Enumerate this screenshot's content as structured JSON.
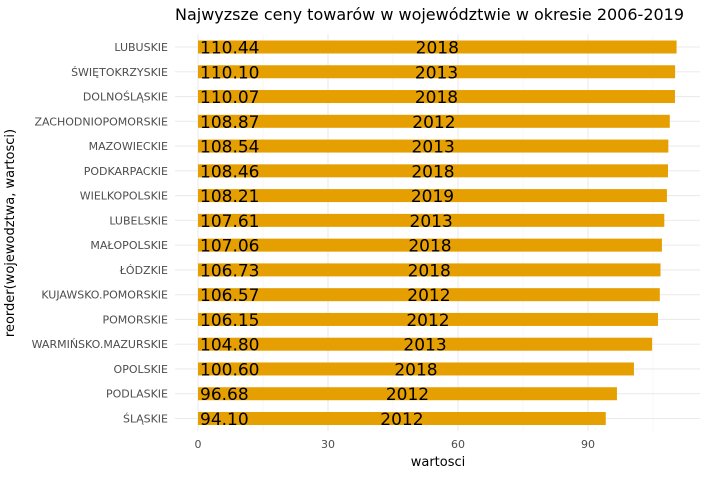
{
  "chart_data": {
    "type": "bar",
    "orientation": "horizontal",
    "title": "Najwyzsze ceny towarów w województwie w okresie 2006-2019",
    "xlabel": "wartosci",
    "ylabel": "reorder(wojewodztwa, wartosci)",
    "xlim": [
      0,
      110.44
    ],
    "x_ticks": [
      0,
      30,
      60,
      90
    ],
    "grid": true,
    "bar_color": "#E69F00",
    "categories": [
      "LUBUSKIE",
      "ŚWIĘTOKRZYSKIE",
      "DOLNOŚLĄSKIE",
      "ZACHODNIOPOMORSKIE",
      "MAZOWIECKIE",
      "PODKARPACKIE",
      "WIELKOPOLSKIE",
      "LUBELSKIE",
      "MAŁOPOLSKIE",
      "ŁÓDZKIE",
      "KUJAWSKO.POMORSKIE",
      "POMORSKIE",
      "WARMIŃSKO.MAZURSKIE",
      "OPOLSKIE",
      "PODLASKIE",
      "ŚLĄSKIE"
    ],
    "values": [
      110.44,
      110.1,
      110.07,
      108.87,
      108.54,
      108.46,
      108.21,
      107.61,
      107.06,
      106.73,
      106.57,
      106.15,
      104.8,
      100.6,
      96.68,
      94.1
    ],
    "value_labels": [
      "110.44",
      "110.10",
      "110.07",
      "108.87",
      "108.54",
      "108.46",
      "108.21",
      "107.61",
      "107.06",
      "106.73",
      "106.57",
      "106.15",
      "104.80",
      "100.60",
      "96.68",
      "94.10"
    ],
    "year_labels": [
      "2018",
      "2013",
      "2018",
      "2012",
      "2013",
      "2018",
      "2019",
      "2013",
      "2018",
      "2018",
      "2012",
      "2012",
      "2013",
      "2018",
      "2012",
      "2012"
    ]
  }
}
